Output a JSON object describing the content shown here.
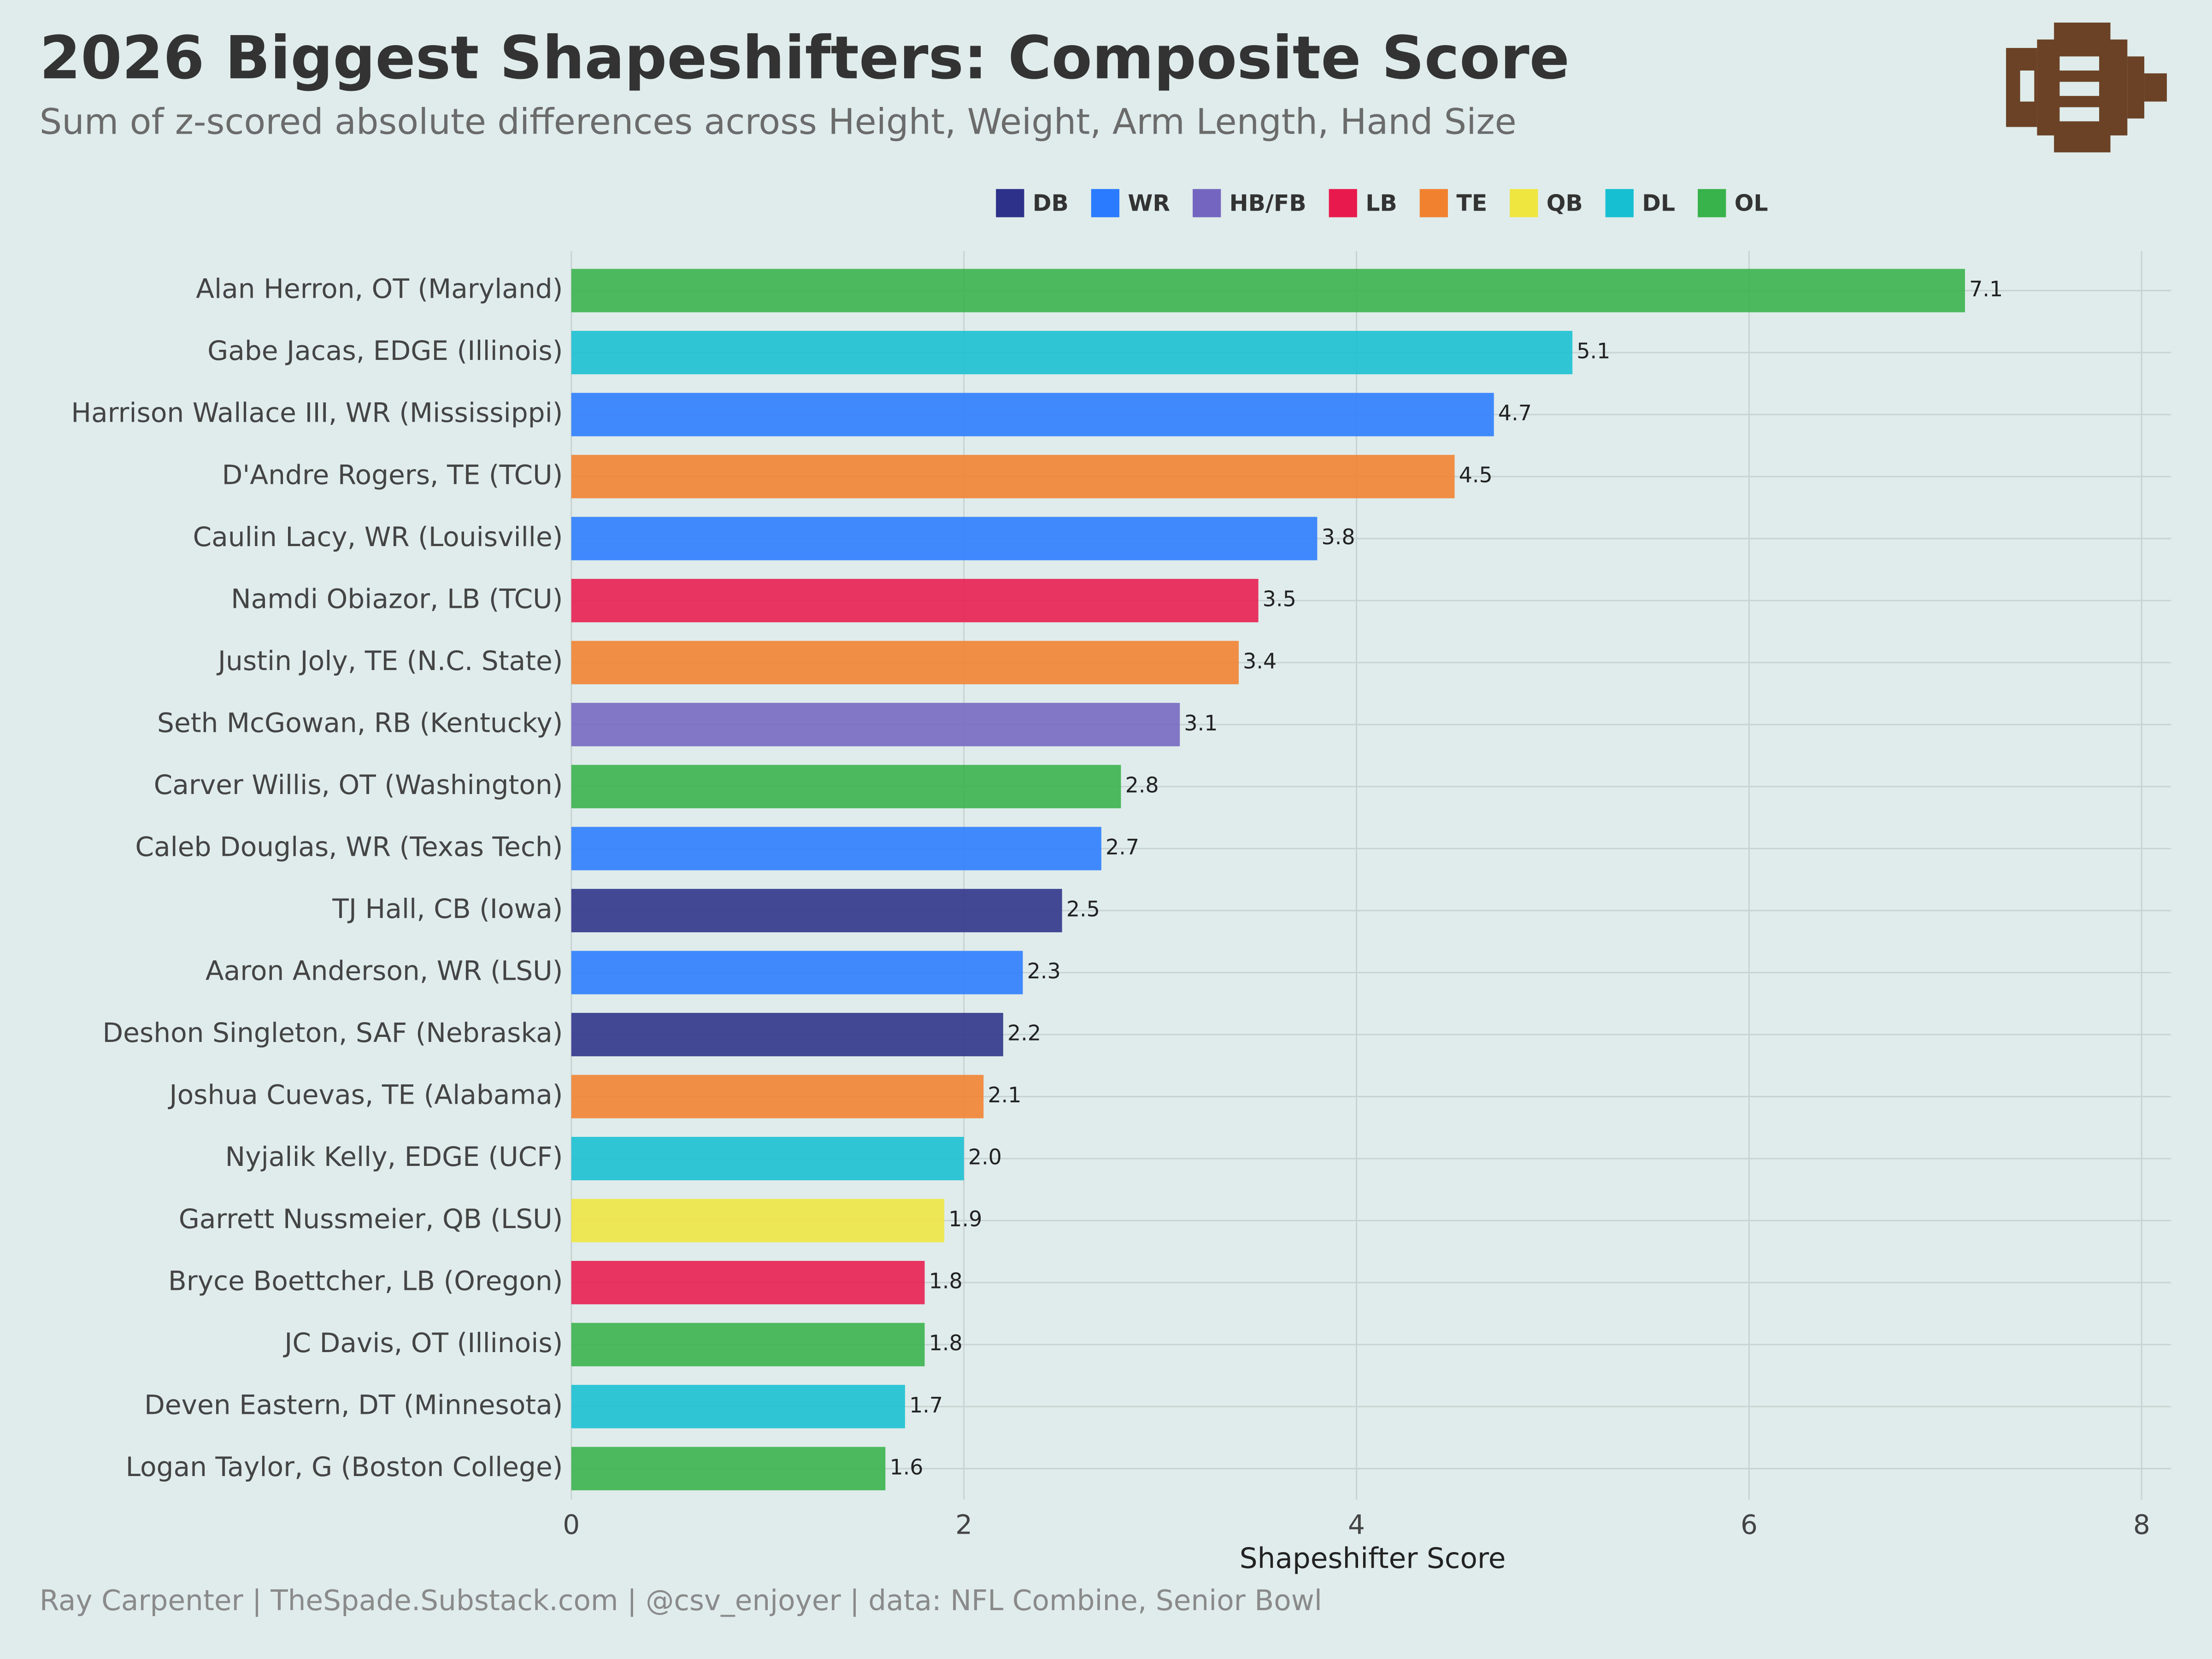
{
  "chart_data": {
    "type": "bar",
    "orientation": "horizontal",
    "title": "2026 Biggest Shapeshifters: Composite Score",
    "subtitle": "Sum of z-scored absolute differences across Height, Weight, Arm Length, Hand Size",
    "x_label": "Shapeshifter Score",
    "caption": "Ray Carpenter | TheSpade.Substack.com | @csv_enjoyer | data: NFL Combine, Senior Bowl",
    "categories": [
      "Alan Herron, OT (Maryland)",
      "Gabe Jacas, EDGE (Illinois)",
      "Harrison Wallace III, WR (Mississippi)",
      "D'Andre Rogers, TE (TCU)",
      "Caulin Lacy, WR (Louisville)",
      "Namdi Obiazor, LB (TCU)",
      "Justin Joly, TE (N.C. State)",
      "Seth McGowan, RB (Kentucky)",
      "Carver Willis, OT (Washington)",
      "Caleb Douglas, WR (Texas Tech)",
      "TJ Hall, CB (Iowa)",
      "Aaron Anderson, WR (LSU)",
      "Deshon Singleton, SAF (Nebraska)",
      "Joshua Cuevas, TE (Alabama)",
      "Nyjalik Kelly, EDGE (UCF)",
      "Garrett Nussmeier, QB (LSU)",
      "Bryce Boettcher, LB (Oregon)",
      "JC Davis, OT (Illinois)",
      "Deven Eastern, DT (Minnesota)",
      "Logan Taylor, G (Boston College)"
    ],
    "series": [
      {
        "name": "DB",
        "color": "#2e3189",
        "values": [
          null,
          null,
          null,
          null,
          null,
          null,
          null,
          null,
          null,
          null,
          2.5,
          null,
          2.2,
          null,
          null,
          null,
          null,
          null,
          null,
          null
        ]
      },
      {
        "name": "WR",
        "color": "#2a7bff",
        "values": [
          null,
          null,
          4.7,
          null,
          3.8,
          null,
          null,
          null,
          null,
          2.7,
          null,
          2.3,
          null,
          null,
          null,
          null,
          null,
          null,
          null,
          null
        ]
      },
      {
        "name": "HB/FB",
        "color": "#7466c0",
        "values": [
          null,
          null,
          null,
          null,
          null,
          null,
          null,
          3.1,
          null,
          null,
          null,
          null,
          null,
          null,
          null,
          null,
          null,
          null,
          null,
          null
        ]
      },
      {
        "name": "LB",
        "color": "#e81a4d",
        "values": [
          null,
          null,
          null,
          null,
          null,
          3.5,
          null,
          null,
          null,
          null,
          null,
          null,
          null,
          null,
          null,
          null,
          1.8,
          null,
          null,
          null
        ]
      },
      {
        "name": "TE",
        "color": "#f2812f",
        "values": [
          null,
          null,
          null,
          4.5,
          null,
          null,
          3.4,
          null,
          null,
          null,
          null,
          null,
          null,
          2.1,
          null,
          null,
          null,
          null,
          null,
          null
        ]
      },
      {
        "name": "QB",
        "color": "#f0e640",
        "values": [
          null,
          null,
          null,
          null,
          null,
          null,
          null,
          null,
          null,
          null,
          null,
          null,
          null,
          null,
          null,
          1.9,
          null,
          null,
          null,
          null
        ]
      },
      {
        "name": "DL",
        "color": "#17bfd2",
        "values": [
          null,
          5.1,
          null,
          null,
          null,
          null,
          null,
          null,
          null,
          null,
          null,
          null,
          null,
          null,
          2.0,
          null,
          null,
          null,
          1.7,
          null
        ],
        "value_labels": [
          null,
          "5.1",
          null,
          null,
          null,
          null,
          null,
          null,
          null,
          null,
          null,
          null,
          null,
          null,
          "2.0",
          null,
          null,
          null,
          "1.7",
          null
        ]
      },
      {
        "name": "OL",
        "color": "#38b24a",
        "values": [
          7.1,
          null,
          null,
          null,
          null,
          null,
          null,
          null,
          2.8,
          null,
          null,
          null,
          null,
          null,
          null,
          null,
          null,
          1.8,
          null,
          1.6
        ]
      }
    ],
    "xlim": [
      0,
      8.15
    ],
    "xticks": [
      0,
      2,
      4,
      6,
      8
    ],
    "grid": true,
    "legend": "top"
  }
}
